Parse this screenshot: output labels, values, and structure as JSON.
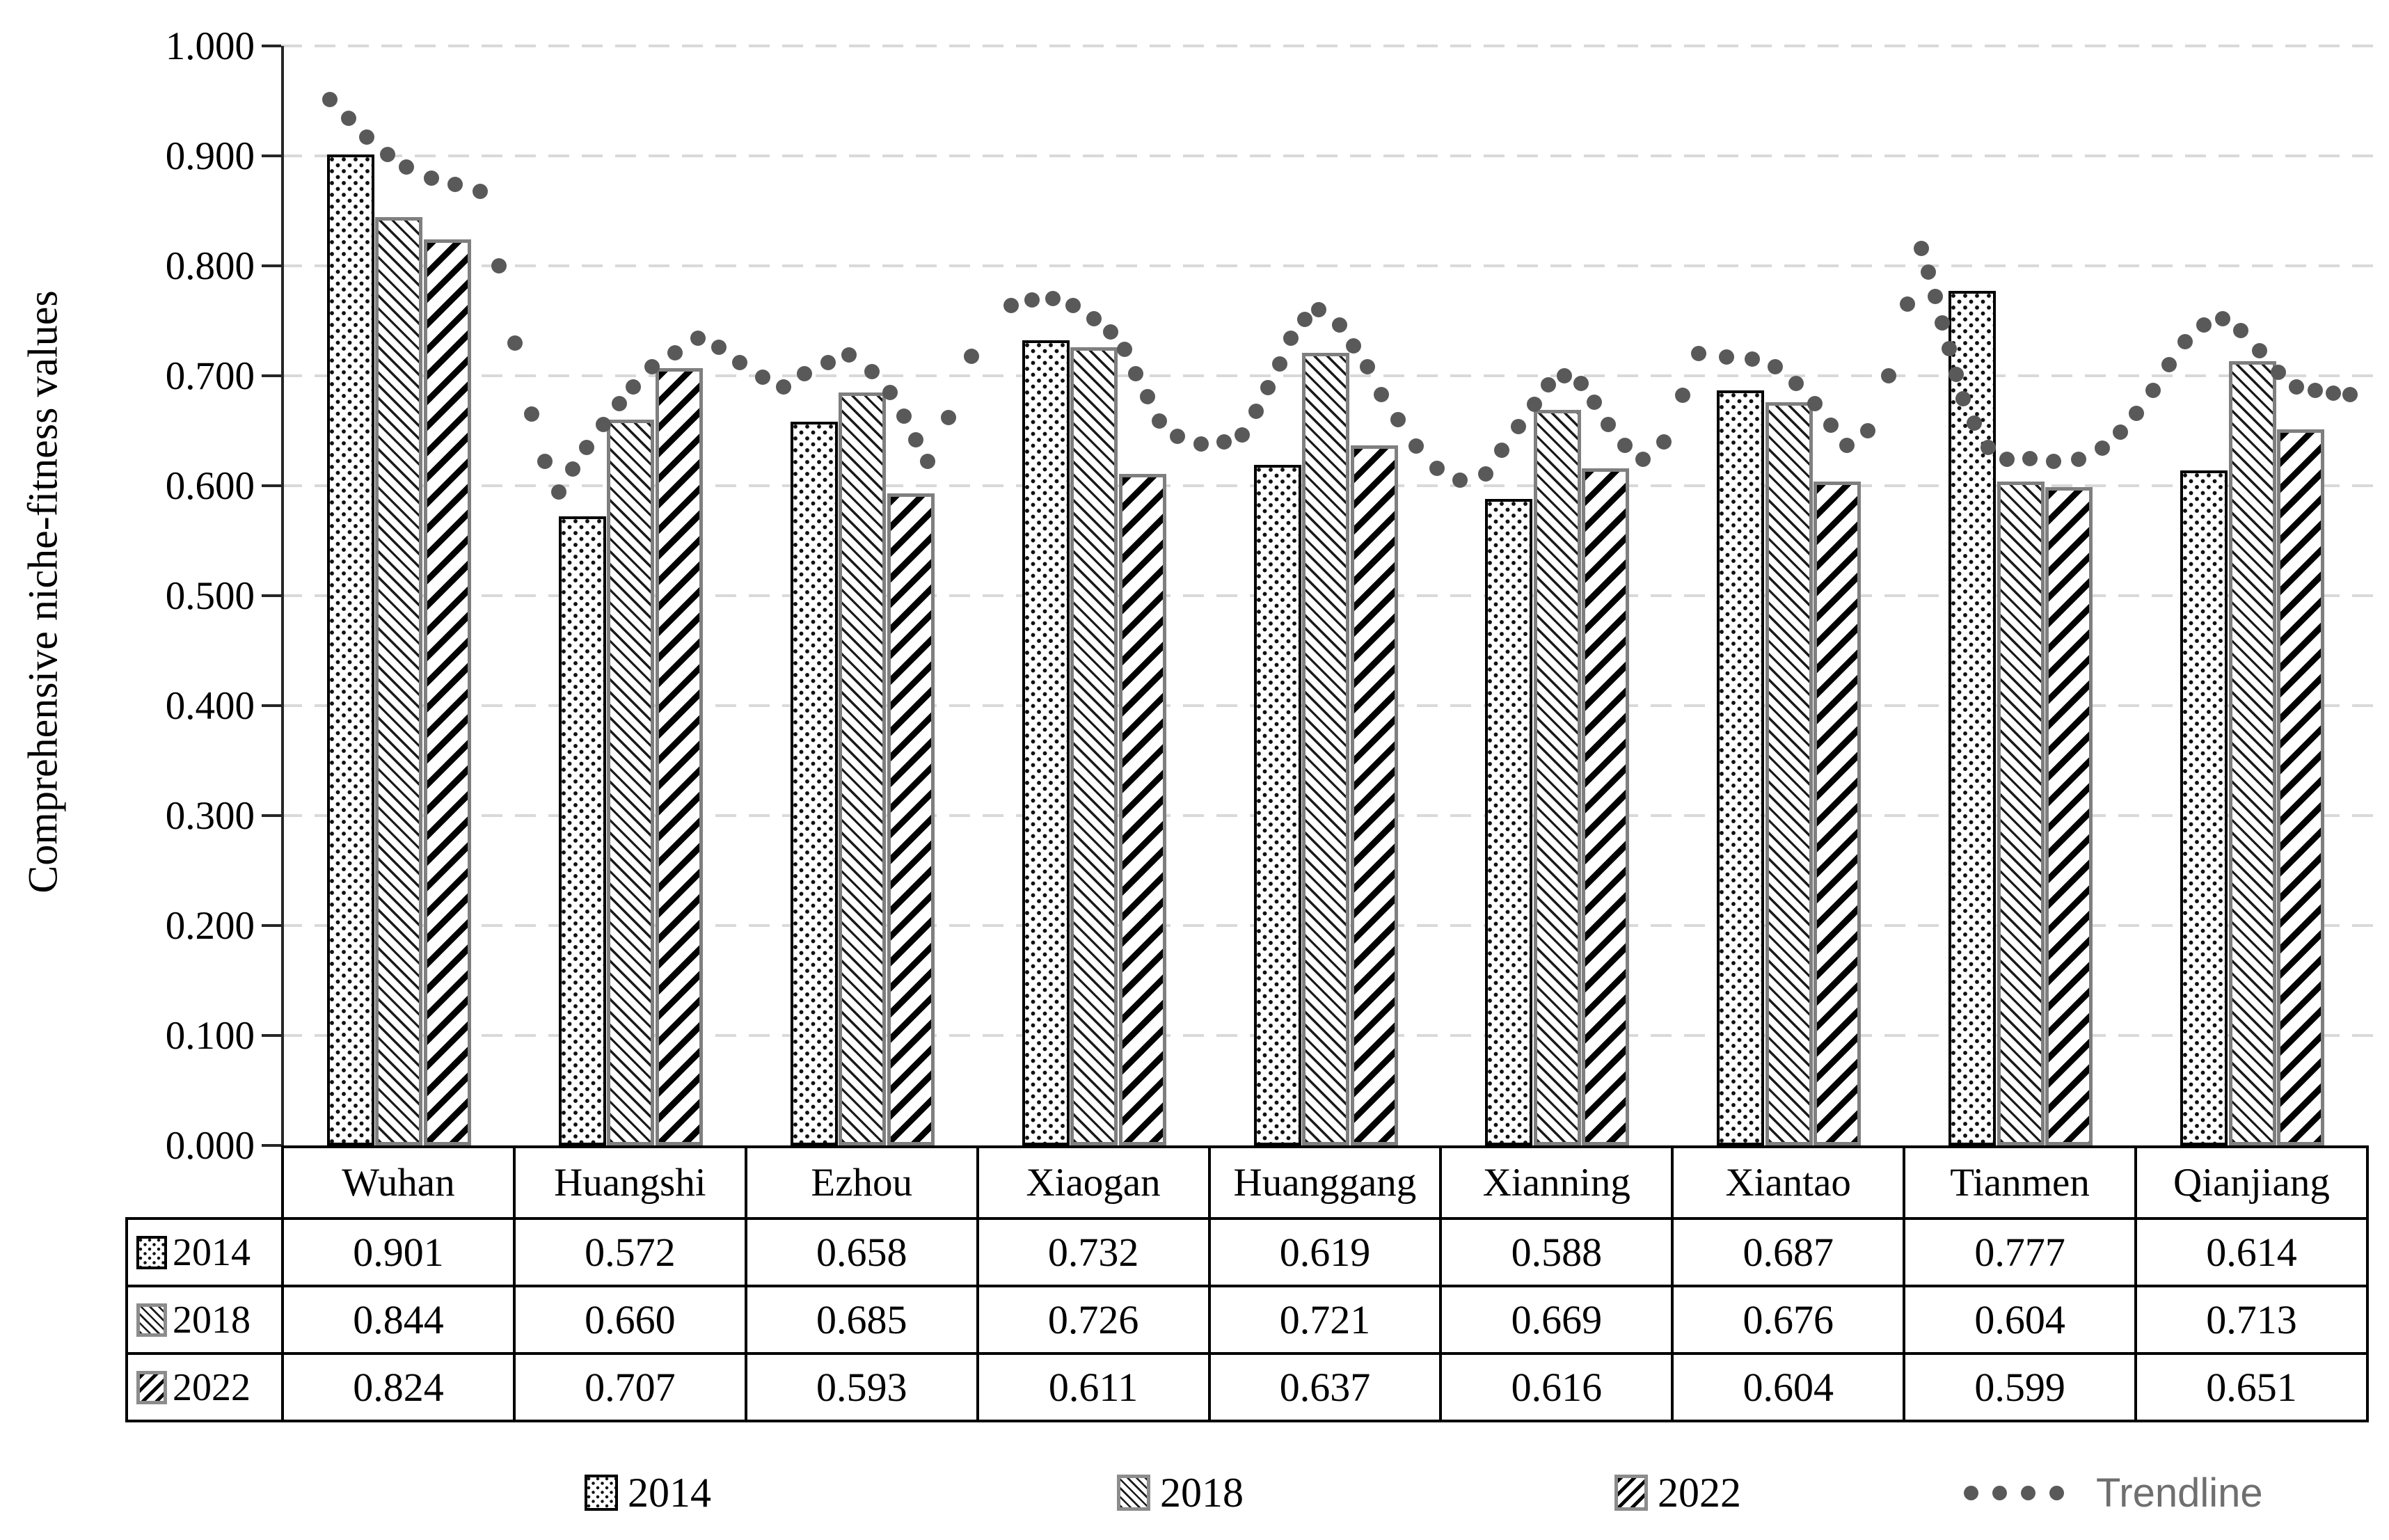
{
  "chart_data": {
    "type": "bar",
    "title": "",
    "xlabel": "",
    "ylabel": "Comprehensive niche-fitness values",
    "ylim": [
      0.0,
      1.0
    ],
    "ytick_step": 0.1,
    "ytick_labels": [
      "0.000",
      "0.100",
      "0.200",
      "0.300",
      "0.400",
      "0.500",
      "0.600",
      "0.700",
      "0.800",
      "0.900",
      "1.000"
    ],
    "grid": "dashed-horizontal",
    "legend_position": "bottom",
    "categories": [
      "Wuhan",
      "Huangshi",
      "Ezhou",
      "Xiaogan",
      "Huanggang",
      "Xianning",
      "Xiantao",
      "Tianmen",
      "Qianjiang"
    ],
    "series": [
      {
        "name": "2014",
        "pattern": "dots",
        "values": [
          "0.901",
          "0.572",
          "0.658",
          "0.732",
          "0.619",
          "0.588",
          "0.687",
          "0.777",
          "0.614"
        ]
      },
      {
        "name": "2018",
        "pattern": "back",
        "values": [
          "0.844",
          "0.660",
          "0.685",
          "0.726",
          "0.721",
          "0.669",
          "0.676",
          "0.604",
          "0.713"
        ]
      },
      {
        "name": "2022",
        "pattern": "fwd",
        "values": [
          "0.824",
          "0.707",
          "0.593",
          "0.611",
          "0.637",
          "0.616",
          "0.604",
          "0.599",
          "0.651"
        ]
      }
    ],
    "trendline": {
      "name": "Trendline",
      "style": "round-dots",
      "color": "#595959",
      "points": [
        [
          0.21,
          0.951
        ],
        [
          0.29,
          0.934
        ],
        [
          0.37,
          0.917
        ],
        [
          0.46,
          0.901
        ],
        [
          0.54,
          0.89
        ],
        [
          0.65,
          0.88
        ],
        [
          0.75,
          0.874
        ],
        [
          0.86,
          0.868
        ],
        [
          0.94,
          0.8
        ],
        [
          1.01,
          0.73
        ],
        [
          1.08,
          0.665
        ],
        [
          1.14,
          0.622
        ],
        [
          1.2,
          0.594
        ],
        [
          1.26,
          0.615
        ],
        [
          1.32,
          0.635
        ],
        [
          1.39,
          0.656
        ],
        [
          1.46,
          0.675
        ],
        [
          1.52,
          0.69
        ],
        [
          1.6,
          0.708
        ],
        [
          1.7,
          0.721
        ],
        [
          1.8,
          0.734
        ],
        [
          1.89,
          0.726
        ],
        [
          1.98,
          0.712
        ],
        [
          2.08,
          0.699
        ],
        [
          2.17,
          0.69
        ],
        [
          2.26,
          0.702
        ],
        [
          2.36,
          0.712
        ],
        [
          2.45,
          0.719
        ],
        [
          2.55,
          0.704
        ],
        [
          2.63,
          0.685
        ],
        [
          2.69,
          0.663
        ],
        [
          2.74,
          0.642
        ],
        [
          2.79,
          0.622
        ],
        [
          2.88,
          0.662
        ],
        [
          2.98,
          0.718
        ],
        [
          3.15,
          0.764
        ],
        [
          3.24,
          0.769
        ],
        [
          3.33,
          0.77
        ],
        [
          3.42,
          0.764
        ],
        [
          3.51,
          0.752
        ],
        [
          3.58,
          0.74
        ],
        [
          3.64,
          0.724
        ],
        [
          3.69,
          0.702
        ],
        [
          3.74,
          0.681
        ],
        [
          3.79,
          0.659
        ],
        [
          3.87,
          0.645
        ],
        [
          3.97,
          0.638
        ],
        [
          4.07,
          0.64
        ],
        [
          4.15,
          0.646
        ],
        [
          4.21,
          0.668
        ],
        [
          4.26,
          0.689
        ],
        [
          4.31,
          0.711
        ],
        [
          4.36,
          0.734
        ],
        [
          4.42,
          0.751
        ],
        [
          4.48,
          0.76
        ],
        [
          4.57,
          0.746
        ],
        [
          4.63,
          0.727
        ],
        [
          4.69,
          0.708
        ],
        [
          4.75,
          0.683
        ],
        [
          4.82,
          0.66
        ],
        [
          4.9,
          0.636
        ],
        [
          4.99,
          0.616
        ],
        [
          5.09,
          0.605
        ],
        [
          5.2,
          0.611
        ],
        [
          5.27,
          0.632
        ],
        [
          5.34,
          0.654
        ],
        [
          5.41,
          0.674
        ],
        [
          5.47,
          0.692
        ],
        [
          5.54,
          0.7
        ],
        [
          5.61,
          0.693
        ],
        [
          5.67,
          0.676
        ],
        [
          5.73,
          0.656
        ],
        [
          5.8,
          0.637
        ],
        [
          5.88,
          0.624
        ],
        [
          5.97,
          0.64
        ],
        [
          6.05,
          0.682
        ],
        [
          6.12,
          0.72
        ],
        [
          6.24,
          0.717
        ],
        [
          6.35,
          0.715
        ],
        [
          6.45,
          0.708
        ],
        [
          6.54,
          0.693
        ],
        [
          6.62,
          0.675
        ],
        [
          6.69,
          0.655
        ],
        [
          6.76,
          0.637
        ],
        [
          6.85,
          0.65
        ],
        [
          6.94,
          0.7
        ],
        [
          7.02,
          0.765
        ],
        [
          7.08,
          0.816
        ],
        [
          7.11,
          0.794
        ],
        [
          7.14,
          0.772
        ],
        [
          7.17,
          0.748
        ],
        [
          7.2,
          0.725
        ],
        [
          7.23,
          0.701
        ],
        [
          7.26,
          0.679
        ],
        [
          7.31,
          0.657
        ],
        [
          7.37,
          0.635
        ],
        [
          7.45,
          0.624
        ],
        [
          7.55,
          0.625
        ],
        [
          7.65,
          0.622
        ],
        [
          7.76,
          0.624
        ],
        [
          7.86,
          0.634
        ],
        [
          7.94,
          0.649
        ],
        [
          8.01,
          0.666
        ],
        [
          8.08,
          0.687
        ],
        [
          8.15,
          0.71
        ],
        [
          8.22,
          0.731
        ],
        [
          8.3,
          0.746
        ],
        [
          8.38,
          0.752
        ],
        [
          8.46,
          0.741
        ],
        [
          8.54,
          0.723
        ],
        [
          8.62,
          0.703
        ],
        [
          8.7,
          0.69
        ],
        [
          8.78,
          0.687
        ],
        [
          8.86,
          0.684
        ],
        [
          8.93,
          0.683
        ]
      ]
    },
    "data_table": {
      "row_headers": [
        "2014",
        "2018",
        "2022"
      ],
      "show_legend_keys": true
    }
  },
  "legend": {
    "items": [
      {
        "label": "2014",
        "swatch": "dots"
      },
      {
        "label": "2018",
        "swatch": "back"
      },
      {
        "label": "2022",
        "swatch": "fwd"
      },
      {
        "label": "Trendline",
        "swatch": "trend-dots"
      }
    ]
  },
  "colors": {
    "trendline": "#595959",
    "gridline": "#d9d9d9",
    "axis": "#262626",
    "bar_border_2014": "#000000",
    "bar_border_2018_2022": "#7f7f7f",
    "trendline_label": "#6f6f6f",
    "text": "#000000"
  }
}
